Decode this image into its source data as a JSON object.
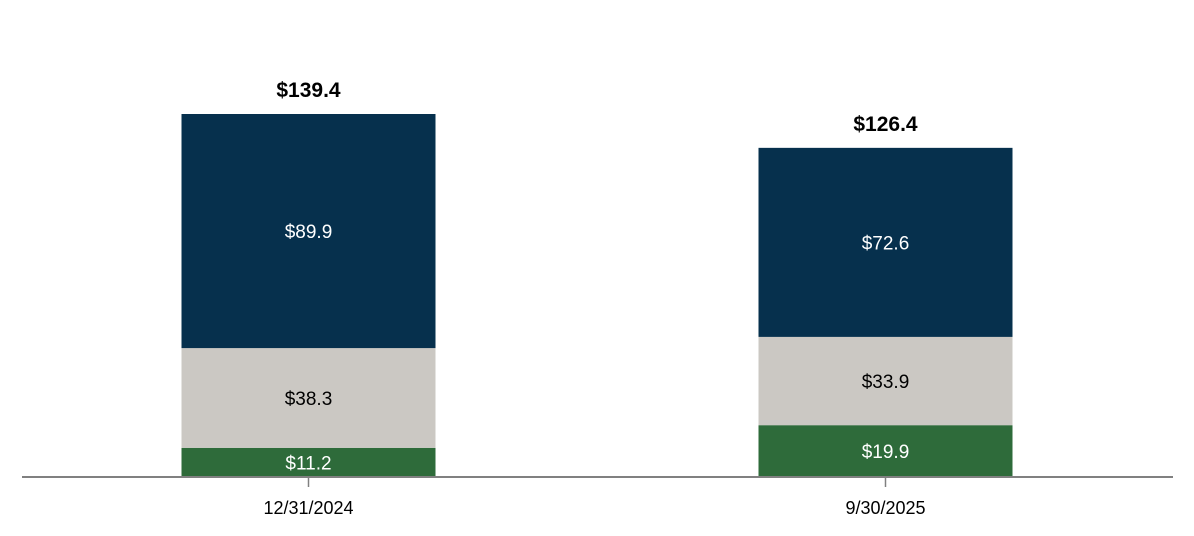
{
  "chart_data": {
    "type": "stacked-bar",
    "title": "",
    "xlabel": "",
    "ylabel": "",
    "ylim": [
      0,
      139.4
    ],
    "grid": false,
    "legend": "none",
    "categories": [
      "12/31/2024",
      "9/30/2025"
    ],
    "totals": [
      139.4,
      126.4
    ],
    "total_labels": [
      "$139.4",
      "$126.4"
    ],
    "series": [
      {
        "values": [
          11.2,
          19.9
        ],
        "labels": [
          "$11.2",
          "$19.9"
        ],
        "color": "#2e6b3a",
        "label_color": "#ffffff"
      },
      {
        "values": [
          38.3,
          33.9
        ],
        "labels": [
          "$38.3",
          "$33.9"
        ],
        "color": "#cbc8c3",
        "label_color": "#000000"
      },
      {
        "values": [
          89.9,
          72.6
        ],
        "labels": [
          "$89.9",
          "$72.6"
        ],
        "color": "#06304d",
        "label_color": "#ffffff"
      }
    ],
    "axis_color": "#808080"
  }
}
